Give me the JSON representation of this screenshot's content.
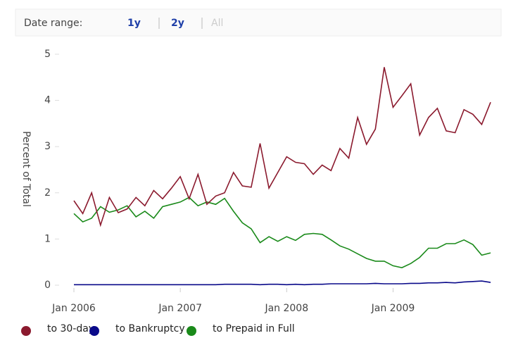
{
  "date_range": {
    "label": "Date range:",
    "options": [
      "1y",
      "2y",
      "All"
    ]
  },
  "chart_data": {
    "type": "line",
    "y_label": "Percent of Total",
    "x": [
      "2006-01",
      "2006-02",
      "2006-03",
      "2006-04",
      "2006-05",
      "2006-06",
      "2006-07",
      "2006-08",
      "2006-09",
      "2006-10",
      "2006-11",
      "2006-12",
      "2007-01",
      "2007-02",
      "2007-03",
      "2007-04",
      "2007-05",
      "2007-06",
      "2007-07",
      "2007-08",
      "2007-09",
      "2007-10",
      "2007-11",
      "2007-12",
      "2008-01",
      "2008-02",
      "2008-03",
      "2008-04",
      "2008-05",
      "2008-06",
      "2008-07",
      "2008-08",
      "2008-09",
      "2008-10",
      "2008-11",
      "2008-12",
      "2009-01",
      "2009-02",
      "2009-03",
      "2009-04",
      "2009-05",
      "2009-06",
      "2009-07",
      "2009-08",
      "2009-09",
      "2009-10",
      "2009-11",
      "2009-12"
    ],
    "xticks": [
      {
        "value": "2006-01",
        "label": "Jan 2006"
      },
      {
        "value": "2007-01",
        "label": "Jan 2007"
      },
      {
        "value": "2008-01",
        "label": "Jan 2008"
      },
      {
        "value": "2009-01",
        "label": "Jan 2009"
      }
    ],
    "ylim": [
      0,
      5
    ],
    "yticks": [
      0,
      1,
      2,
      3,
      4,
      5
    ],
    "series": [
      {
        "name": "to 30-day",
        "color": "#8b1a2e",
        "values": [
          1.83,
          1.55,
          2.0,
          1.3,
          1.9,
          1.57,
          1.65,
          1.9,
          1.72,
          2.05,
          1.87,
          2.1,
          2.35,
          1.87,
          2.4,
          1.75,
          1.93,
          2.0,
          2.44,
          2.15,
          2.12,
          3.07,
          2.1,
          2.44,
          2.78,
          2.66,
          2.63,
          2.4,
          2.6,
          2.48,
          2.96,
          2.75,
          3.63,
          3.05,
          3.38,
          4.72,
          3.85,
          4.1,
          4.36,
          3.25,
          3.63,
          3.83,
          3.34,
          3.3,
          3.8,
          3.7,
          3.48,
          3.96
        ]
      },
      {
        "name": "to Bankruptcy",
        "color": "#0a0a8a",
        "values": [
          0.01,
          0.01,
          0.01,
          0.01,
          0.01,
          0.01,
          0.01,
          0.01,
          0.01,
          0.01,
          0.01,
          0.01,
          0.01,
          0.01,
          0.01,
          0.01,
          0.01,
          0.02,
          0.02,
          0.02,
          0.02,
          0.01,
          0.02,
          0.02,
          0.01,
          0.02,
          0.01,
          0.02,
          0.02,
          0.03,
          0.03,
          0.03,
          0.03,
          0.03,
          0.04,
          0.03,
          0.03,
          0.03,
          0.04,
          0.04,
          0.05,
          0.05,
          0.06,
          0.05,
          0.07,
          0.08,
          0.09,
          0.06
        ]
      },
      {
        "name": "to Prepaid in Full",
        "color": "#1a8a1a",
        "values": [
          1.55,
          1.37,
          1.45,
          1.7,
          1.58,
          1.63,
          1.72,
          1.48,
          1.6,
          1.45,
          1.7,
          1.75,
          1.8,
          1.9,
          1.72,
          1.8,
          1.75,
          1.88,
          1.6,
          1.35,
          1.22,
          0.92,
          1.05,
          0.95,
          1.05,
          0.97,
          1.1,
          1.12,
          1.1,
          0.98,
          0.85,
          0.78,
          0.68,
          0.58,
          0.52,
          0.52,
          0.42,
          0.38,
          0.47,
          0.6,
          0.8,
          0.8,
          0.9,
          0.9,
          0.98,
          0.88,
          0.65,
          0.7
        ]
      }
    ]
  }
}
